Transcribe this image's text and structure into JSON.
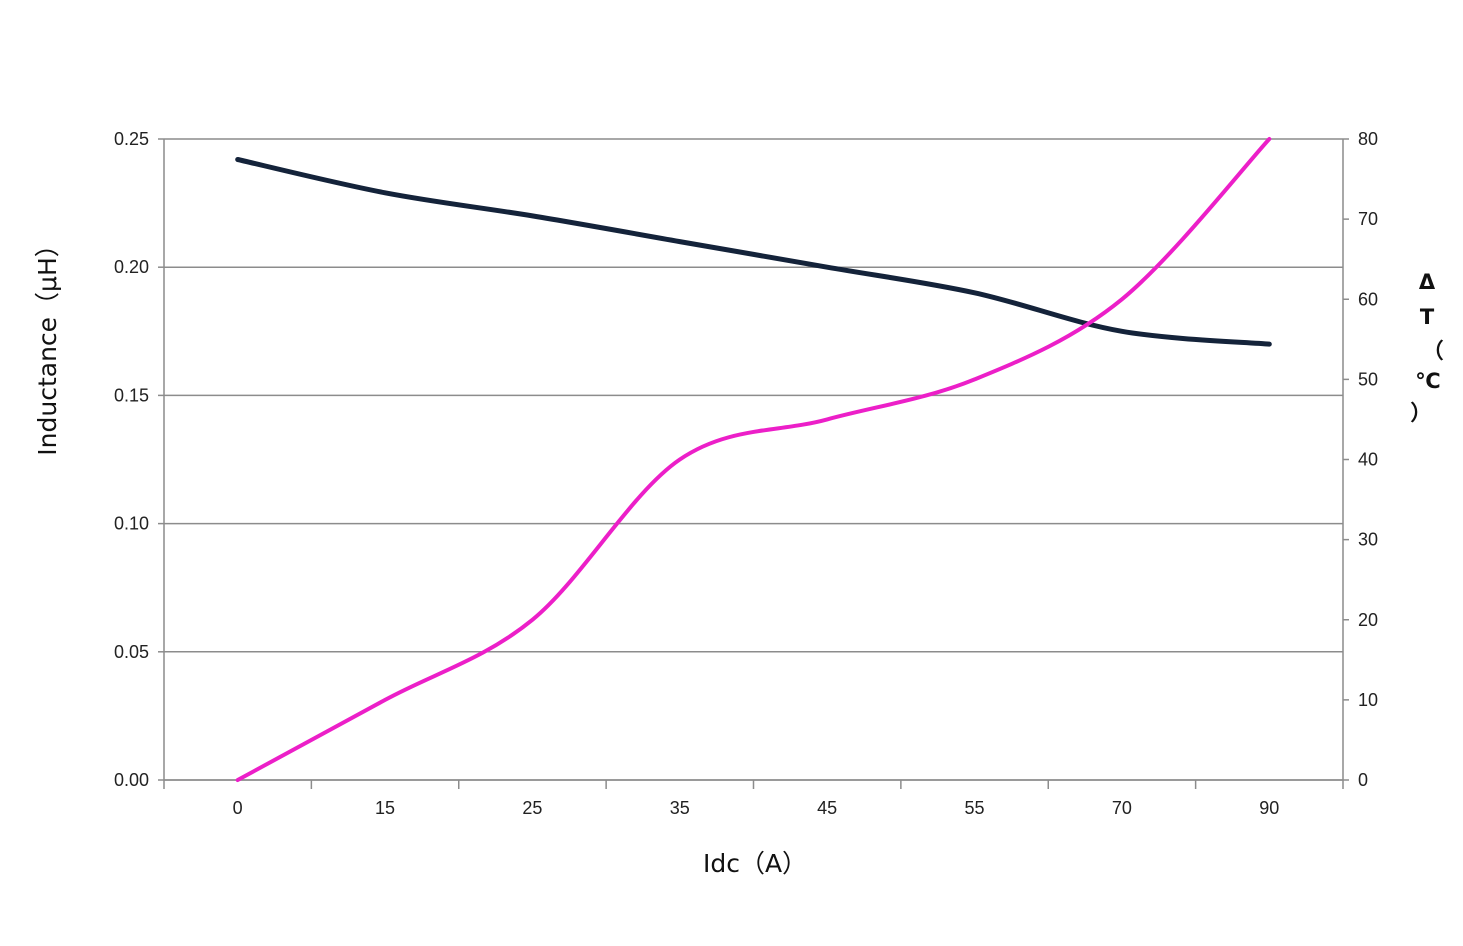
{
  "chart_data": {
    "type": "line",
    "categories": [
      "0",
      "15",
      "25",
      "35",
      "45",
      "55",
      "70",
      "90"
    ],
    "xlabel": "Idc（A）",
    "ylabel": "Inductance（μH）",
    "y2label": [
      "Δ",
      "T",
      "（",
      "℃",
      "）"
    ],
    "ylim": [
      0,
      0.25
    ],
    "y2lim": [
      0,
      80
    ],
    "yticks": [
      "0.00",
      "0.05",
      "0.10",
      "0.15",
      "0.20",
      "0.25"
    ],
    "y2ticks": [
      "0",
      "10",
      "20",
      "30",
      "40",
      "50",
      "60",
      "70",
      "80"
    ],
    "grid": true,
    "series": [
      {
        "axis": "left",
        "color": "#14233a",
        "x": [
          0,
          15,
          25,
          35,
          45,
          55,
          70,
          90
        ],
        "values": [
          0.242,
          0.229,
          0.22,
          0.21,
          0.2,
          0.19,
          0.175,
          0.17
        ]
      },
      {
        "axis": "right",
        "color": "#ec1fc8",
        "x": [
          0,
          15,
          25,
          35,
          45,
          55,
          70,
          90
        ],
        "values": [
          0,
          10,
          20,
          40,
          45,
          50,
          60,
          80
        ]
      }
    ]
  }
}
